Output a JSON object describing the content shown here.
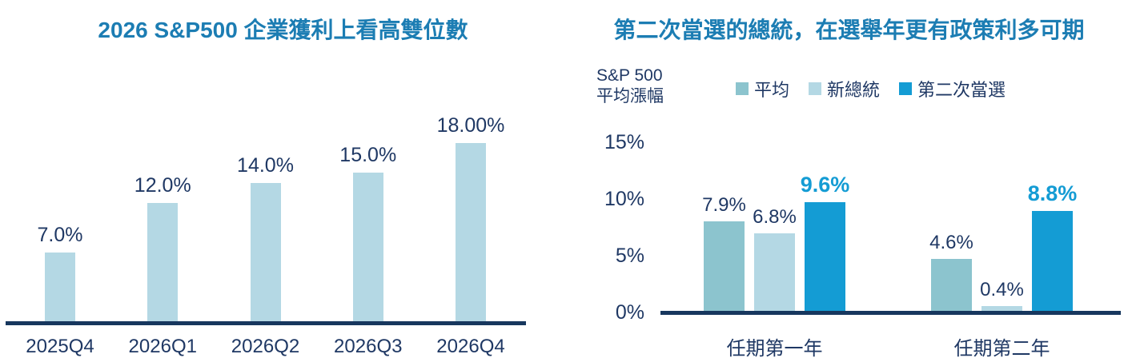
{
  "colors": {
    "title_blue": "#1C7DB3",
    "text_navy": "#1F3864",
    "axis_line_navy": "#17375E",
    "light_blue": "#B4D8E4",
    "teal_blue": "#8CC4CE",
    "bright_blue": "#149CD4"
  },
  "left_chart": {
    "title": "2026 S&P500 企業獲利上看高雙位數"
  },
  "right_chart": {
    "title": "第二次當選的總統，在選舉年更有政策利多可期",
    "axis_label_line1": "S&P 500",
    "axis_label_line2": "平均漲幅"
  },
  "chart_data": [
    {
      "type": "bar",
      "title": "2026 S&P500 企業獲利上看高雙位數",
      "categories": [
        "2025Q4",
        "2026Q1",
        "2026Q2",
        "2026Q3",
        "2026Q4"
      ],
      "values": [
        7.0,
        12.0,
        14.0,
        15.0,
        18.0
      ],
      "data_labels": [
        "7.0%",
        "12.0%",
        "14.0%",
        "15.0%",
        "18.00%"
      ],
      "bar_color": "#B4D8E4",
      "xlabel": "",
      "ylabel": "",
      "ylim": [
        0,
        20
      ],
      "grid": false,
      "legend": "none"
    },
    {
      "type": "bar",
      "title": "第二次當選的總統，在選舉年更有政策利多可期",
      "ylabel": "S&P 500 平均漲幅",
      "categories": [
        "任期第一年",
        "任期第二年"
      ],
      "series": [
        {
          "name": "平均",
          "values": [
            7.9,
            4.6
          ],
          "color": "#8CC4CE",
          "highlight": false
        },
        {
          "name": "新總統",
          "values": [
            6.8,
            0.4
          ],
          "color": "#B4D8E4",
          "highlight": false
        },
        {
          "name": "第二次當選",
          "values": [
            9.6,
            8.8
          ],
          "color": "#149CD4",
          "highlight": true
        }
      ],
      "data_labels": [
        [
          "7.9%",
          "6.8%",
          "9.6%"
        ],
        [
          "4.6%",
          "0.4%",
          "8.8%"
        ]
      ],
      "yticks": [
        "15%",
        "10%",
        "5%",
        "0%"
      ],
      "ylim": [
        0,
        15
      ],
      "grid": false,
      "legend_position": "top"
    }
  ]
}
